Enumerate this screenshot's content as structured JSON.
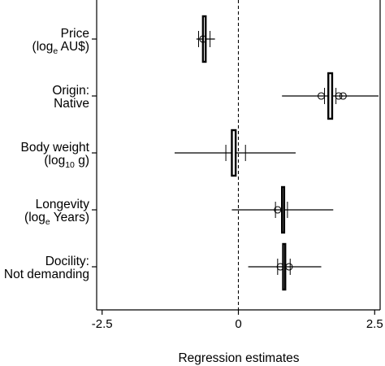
{
  "chart_data": {
    "type": "forest",
    "xlabel": "Regression estimates",
    "xlim": [
      -2.6,
      2.6
    ],
    "xticks": [
      {
        "value": -2.5,
        "label": "-2.5"
      },
      {
        "value": 0,
        "label": "0"
      },
      {
        "value": 2.5,
        "label": "2.5"
      }
    ],
    "reference_line": {
      "value": 0,
      "style": "dashed"
    },
    "grid": false,
    "legend": "none",
    "rows": [
      {
        "label_line1": "Price",
        "label_line2_prefix": "(log",
        "label_line2_sub": "e",
        "label_line2_suffix": " AU$)",
        "bar": {
          "low": -0.65,
          "high": -0.6
        },
        "ci": [
          -0.77,
          -0.43
        ],
        "points": [
          -0.65
        ],
        "whisker_ticks": [
          -0.73,
          -0.52
        ]
      },
      {
        "label_line1": "Origin:",
        "label_line2_prefix": "Native",
        "label_line2_sub": "",
        "label_line2_suffix": "",
        "bar": {
          "low": 1.65,
          "high": 1.72
        },
        "ci": [
          0.8,
          2.57
        ],
        "points": [
          1.52,
          1.84,
          1.92
        ],
        "whisker_ticks": [
          1.58,
          1.79
        ]
      },
      {
        "label_line1": "Body weight",
        "label_line2_prefix": "(log",
        "label_line2_sub": "10",
        "label_line2_suffix": " g)",
        "bar": {
          "low": -0.12,
          "high": -0.05
        },
        "ci": [
          -1.17,
          1.05
        ],
        "points": [],
        "whisker_ticks": [
          -0.23,
          0.13
        ]
      },
      {
        "label_line1": "Longevity",
        "label_line2_prefix": "(log",
        "label_line2_sub": "e",
        "label_line2_suffix": " Years)",
        "bar": {
          "low": 0.8,
          "high": 0.84
        },
        "ci": [
          -0.12,
          1.74
        ],
        "points": [
          0.72
        ],
        "whisker_ticks": [
          0.68,
          0.9
        ]
      },
      {
        "label_line1": "Docility:",
        "label_line2_prefix": "Not demanding",
        "label_line2_sub": "",
        "label_line2_suffix": "",
        "bar": {
          "low": 0.82,
          "high": 0.86
        },
        "ci": [
          0.18,
          1.52
        ],
        "points": [
          0.77,
          0.93
        ],
        "whisker_ticks": [
          0.72,
          0.95
        ]
      }
    ]
  }
}
